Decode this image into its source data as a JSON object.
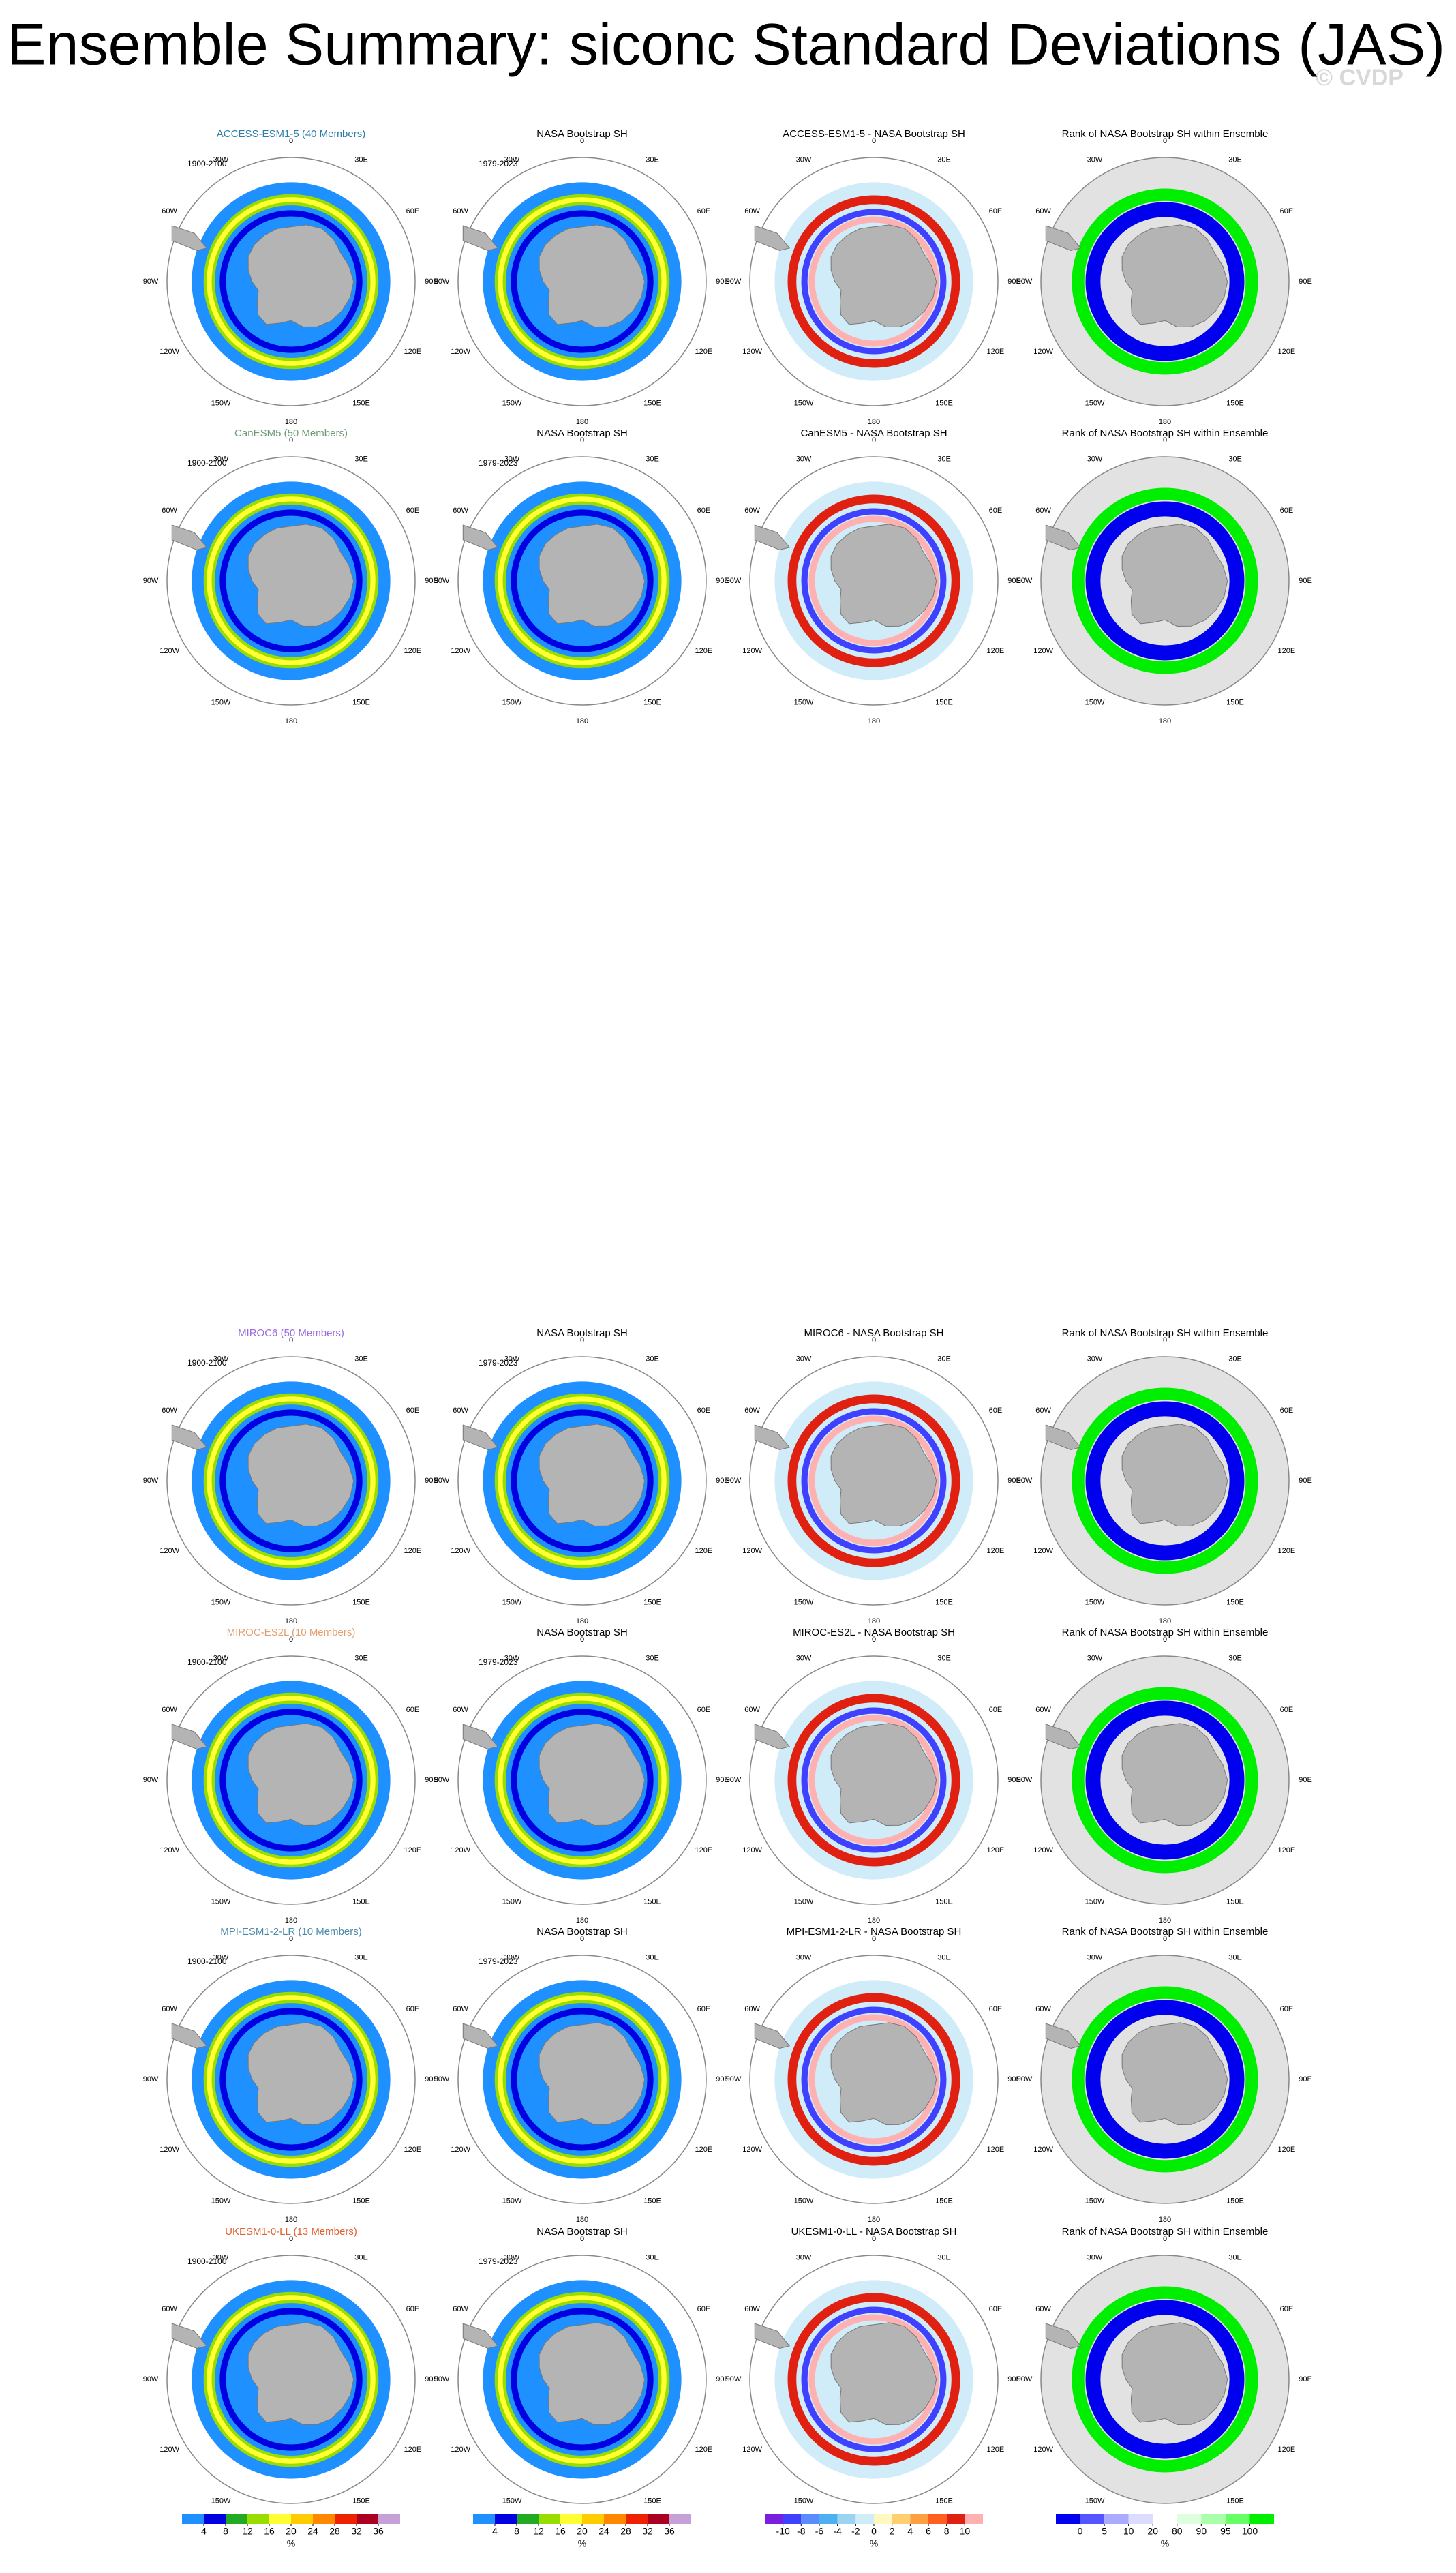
{
  "title": "Ensemble Summary: siconc Standard Deviations (JAS)",
  "watermark": "© CVDP",
  "lon_labels": [
    "0",
    "30E",
    "60E",
    "90E",
    "120E",
    "150E",
    "180",
    "150W",
    "120W",
    "90W",
    "60W",
    "30W"
  ],
  "rows": [
    {
      "panels": [
        {
          "title": "ACCESS-ESM1-5 (40 Members)",
          "color": "#2b7ea8",
          "period": "1900-2100"
        },
        {
          "title": "NASA Bootstrap SH",
          "period": "1979-2023"
        },
        {
          "title": "ACCESS-ESM1-5 - NASA Bootstrap SH"
        },
        {
          "title": "Rank of NASA Bootstrap SH within Ensemble"
        }
      ]
    },
    {
      "panels": [
        {
          "title": "CanESM5 (50 Members)",
          "color": "#6b9b72",
          "period": "1900-2100"
        },
        {
          "title": "NASA Bootstrap SH",
          "period": "1979-2023"
        },
        {
          "title": "CanESM5 - NASA Bootstrap SH"
        },
        {
          "title": "Rank of NASA Bootstrap SH within Ensemble"
        }
      ]
    },
    {
      "panels": [
        {
          "title": "MIROC6 (50 Members)",
          "color": "#9b6be0",
          "period": "1900-2100"
        },
        {
          "title": "NASA Bootstrap SH",
          "period": "1979-2023"
        },
        {
          "title": "MIROC6 - NASA Bootstrap SH"
        },
        {
          "title": "Rank of NASA Bootstrap SH within Ensemble"
        }
      ]
    },
    {
      "panels": [
        {
          "title": "MIROC-ES2L (10 Members)",
          "color": "#e0a070",
          "period": "1900-2100"
        },
        {
          "title": "NASA Bootstrap SH",
          "period": "1979-2023"
        },
        {
          "title": "MIROC-ES2L - NASA Bootstrap SH"
        },
        {
          "title": "Rank of NASA Bootstrap SH within Ensemble"
        }
      ]
    },
    {
      "panels": [
        {
          "title": "MPI-ESM1-2-LR (10 Members)",
          "color": "#4a8aa8",
          "period": "1900-2100"
        },
        {
          "title": "NASA Bootstrap SH",
          "period": "1979-2023"
        },
        {
          "title": "MPI-ESM1-2-LR - NASA Bootstrap SH"
        },
        {
          "title": "Rank of NASA Bootstrap SH within Ensemble"
        }
      ]
    },
    {
      "panels": [
        {
          "title": "UKESM1-0-LL (13 Members)",
          "color": "#e0602f",
          "period": "1900-2100"
        },
        {
          "title": "NASA Bootstrap SH",
          "period": "1979-2023"
        },
        {
          "title": "UKESM1-0-LL - NASA Bootstrap SH"
        },
        {
          "title": "Rank of NASA Bootstrap SH within Ensemble"
        }
      ]
    }
  ],
  "colorbars": [
    {
      "ticks": [
        4,
        8,
        12,
        16,
        20,
        24,
        28,
        32,
        36
      ],
      "unit": "%",
      "colors": [
        "#1e90ff",
        "#0000e0",
        "#22aa22",
        "#99dd00",
        "#ffff33",
        "#ffcc00",
        "#ff8800",
        "#ee2200",
        "#aa0022",
        "#c8a0d8"
      ]
    },
    {
      "ticks": [
        4,
        8,
        12,
        16,
        20,
        24,
        28,
        32,
        36
      ],
      "unit": "%",
      "colors": [
        "#1e90ff",
        "#0000e0",
        "#22aa22",
        "#99dd00",
        "#ffff33",
        "#ffcc00",
        "#ff8800",
        "#ee2200",
        "#aa0022",
        "#c8a0d8"
      ]
    },
    {
      "ticks": [
        -10,
        -8,
        -6,
        -4,
        -2,
        0,
        2,
        4,
        6,
        8,
        10
      ],
      "unit": "%",
      "colors": [
        "#7a1fe0",
        "#4040ff",
        "#5a8cff",
        "#4fb0f0",
        "#9ad4f0",
        "#d0ecf8",
        "#fff8c0",
        "#ffd070",
        "#ffa040",
        "#ff6020",
        "#e02010",
        "#ffb0b0"
      ]
    },
    {
      "ticks": [
        0,
        5,
        10,
        20,
        80,
        90,
        95,
        100
      ],
      "unit": "%",
      "colors": [
        "#0000ee",
        "#5555ff",
        "#aaaaff",
        "#dcdcff",
        "#ffffff",
        "#ddffdd",
        "#aaffaa",
        "#66ff66",
        "#00ee00"
      ]
    }
  ]
}
